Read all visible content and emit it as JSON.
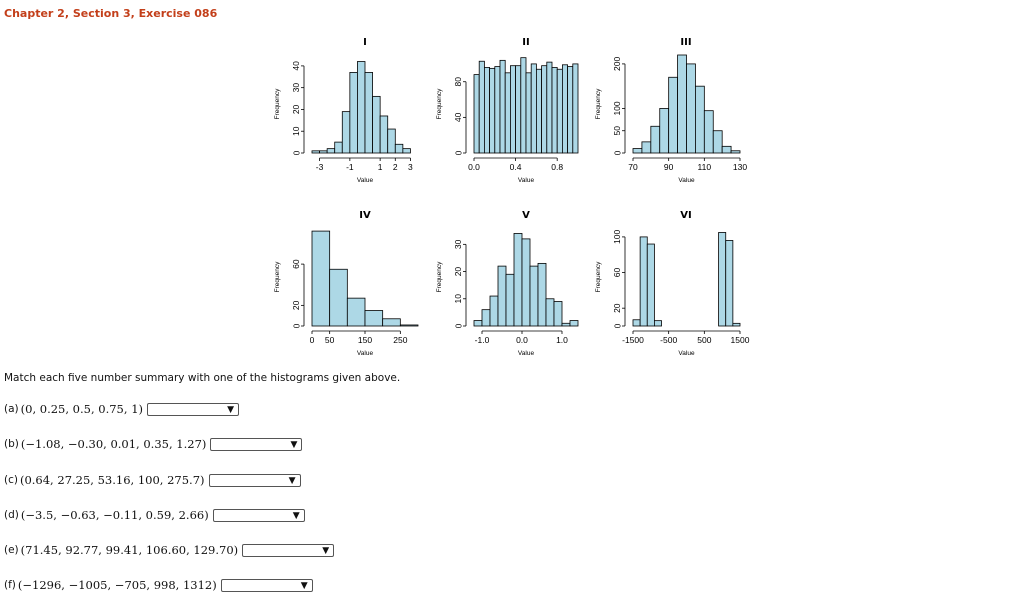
{
  "header": {
    "title": "Chapter 2, Section 3, Exercise 086"
  },
  "prompt": "Match each five number summary with one of the histograms given above.",
  "questions": [
    {
      "label": "(a)",
      "summary": "(0, 0.25, 0.5, 0.75, 1)",
      "selected": ""
    },
    {
      "label": "(b)",
      "summary": "(−1.08, −0.30, 0.01, 0.35, 1.27)",
      "selected": ""
    },
    {
      "label": "(c)",
      "summary": "(0.64, 27.25, 53.16, 100, 275.7)",
      "selected": ""
    },
    {
      "label": "(d)",
      "summary": "(−3.5, −0.63, −0.11, 0.59, 2.66)",
      "selected": ""
    },
    {
      "label": "(e)",
      "summary": "(71.45, 92.77, 99.41, 106.60, 129.70)",
      "selected": ""
    },
    {
      "label": "(f)",
      "summary": "(−1296, −1005, −705, 998, 1312)",
      "selected": ""
    }
  ],
  "chart_data": [
    {
      "type": "bar",
      "title": "I",
      "xlabel": "Value",
      "ylabel": "Frequency",
      "xlim": [
        -3.5,
        3.5
      ],
      "xticks": [
        "-3",
        "-1",
        "1",
        "2",
        "3"
      ],
      "xtick_values": [
        -3,
        -1,
        1,
        2,
        3
      ],
      "ylim": [
        0,
        45
      ],
      "yticks": [
        "0",
        "10",
        "20",
        "30",
        "40"
      ],
      "ytick_values": [
        0,
        10,
        20,
        30,
        40
      ],
      "bin_edges": [
        -3.5,
        -3,
        -2.5,
        -2,
        -1.5,
        -1,
        -0.5,
        0,
        0.5,
        1,
        1.5,
        2,
        2.5,
        3
      ],
      "counts": [
        1,
        1,
        2,
        5,
        19,
        37,
        42,
        37,
        26,
        17,
        11,
        4,
        2
      ]
    },
    {
      "type": "bar",
      "title": "II",
      "xlabel": "Value",
      "ylabel": "Frequency",
      "xlim": [
        0,
        1
      ],
      "xticks": [
        "0.0",
        "0.4",
        "0.8"
      ],
      "xtick_values": [
        0,
        0.4,
        0.8
      ],
      "ylim": [
        0,
        110
      ],
      "yticks": [
        "0",
        "40",
        "80"
      ],
      "ytick_values": [
        0,
        40,
        80
      ],
      "bin_edges": [
        0,
        0.05,
        0.1,
        0.15,
        0.2,
        0.25,
        0.3,
        0.35,
        0.4,
        0.45,
        0.5,
        0.55,
        0.6,
        0.65,
        0.7,
        0.75,
        0.8,
        0.85,
        0.9,
        0.95,
        1
      ],
      "counts": [
        88,
        103,
        96,
        95,
        97,
        104,
        90,
        98,
        98,
        107,
        90,
        100,
        94,
        98,
        102,
        96,
        94,
        99,
        97,
        100
      ],
      "bar_counts_note": ""
    },
    {
      "type": "bar",
      "title": "III",
      "xlabel": "Value",
      "ylabel": "Frequency",
      "xlim": [
        70,
        130
      ],
      "xticks": [
        "70",
        "90",
        "110",
        "130"
      ],
      "xtick_values": [
        70,
        90,
        110,
        130
      ],
      "ylim": [
        0,
        220
      ],
      "yticks": [
        "0",
        "50",
        "100",
        "200"
      ],
      "ytick_values": [
        0,
        50,
        100,
        200
      ],
      "bin_edges": [
        70,
        75,
        80,
        85,
        90,
        95,
        100,
        105,
        110,
        115,
        120,
        125,
        130
      ],
      "counts": [
        10,
        25,
        60,
        100,
        170,
        220,
        200,
        150,
        95,
        50,
        15,
        5
      ]
    },
    {
      "type": "bar",
      "title": "IV",
      "xlabel": "Value",
      "ylabel": "Frequency",
      "xlim": [
        0,
        300
      ],
      "xticks": [
        "0",
        "50",
        "150",
        "250"
      ],
      "xtick_values": [
        0,
        50,
        150,
        250
      ],
      "ylim": [
        0,
        95
      ],
      "yticks": [
        "0",
        "20",
        "60"
      ],
      "ytick_values": [
        0,
        20,
        60
      ],
      "bin_edges": [
        0,
        50,
        100,
        150,
        200,
        250,
        300
      ],
      "counts": [
        92,
        55,
        27,
        15,
        7,
        1
      ]
    },
    {
      "type": "bar",
      "title": "V",
      "xlabel": "Value",
      "ylabel": "Frequency",
      "xlim": [
        -1.2,
        1.4
      ],
      "xticks": [
        "-1.0",
        "0.0",
        "1.0"
      ],
      "xtick_values": [
        -1,
        0,
        1
      ],
      "ylim": [
        0,
        36
      ],
      "yticks": [
        "0",
        "10",
        "20",
        "30"
      ],
      "ytick_values": [
        0,
        10,
        20,
        30
      ],
      "bin_edges": [
        -1.2,
        -1.0,
        -0.8,
        -0.6,
        -0.4,
        -0.2,
        0,
        0.2,
        0.4,
        0.6,
        0.8,
        1.0,
        1.2,
        1.4
      ],
      "counts": [
        2,
        6,
        11,
        22,
        19,
        34,
        32,
        22,
        23,
        10,
        9,
        1,
        2
      ]
    },
    {
      "type": "bar",
      "title": "VI",
      "xlabel": "Value",
      "ylabel": "Frequency",
      "xlim": [
        -1500,
        1500
      ],
      "xticks": [
        "-1500",
        "-500",
        "500",
        "1500"
      ],
      "xtick_values": [
        -1500,
        -500,
        500,
        1500
      ],
      "ylim": [
        0,
        110
      ],
      "yticks": [
        "0",
        "20",
        "60",
        "100"
      ],
      "ytick_values": [
        0,
        20,
        60,
        100
      ],
      "bin_edges": [
        -1500,
        -1300,
        -1100,
        -900,
        -700,
        -500,
        -300,
        -100,
        100,
        300,
        500,
        700,
        900,
        1100,
        1300,
        1500
      ],
      "counts": [
        7,
        100,
        92,
        6,
        0,
        0,
        0,
        0,
        0,
        0,
        0,
        0,
        105,
        96,
        3
      ]
    }
  ],
  "colors": {
    "header": "#c33f1a",
    "bar_fill": "#add8e6",
    "bar_stroke": "#000000"
  },
  "icons": {
    "dropdown": "chevron-down-icon"
  }
}
